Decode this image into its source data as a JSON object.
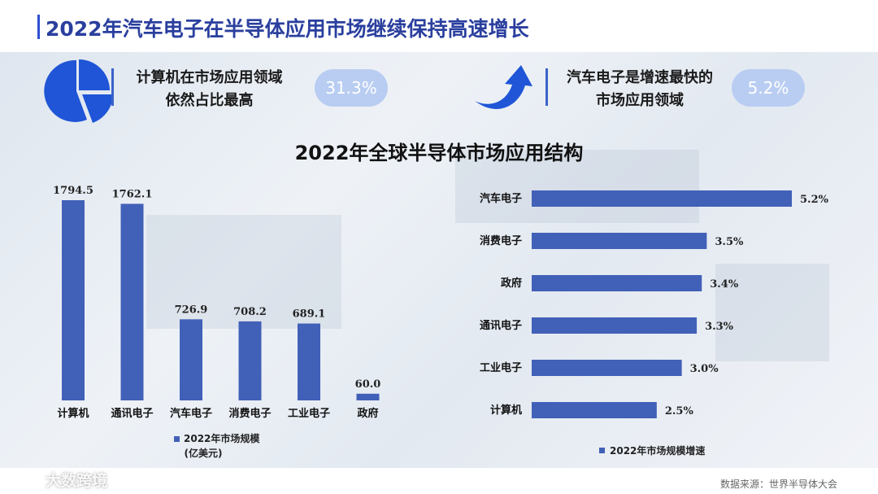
{
  "page": {
    "title": "2022年汽车电子在半导体应用市场继续保持高速增长"
  },
  "kpi": [
    {
      "icon": "pie-chart-icon",
      "line1": "计算机在市场应用领域",
      "line2": "依然占比最高",
      "value": "31.3%"
    },
    {
      "icon": "curved-arrow-up-icon",
      "line1": "汽车电子是增速最快的",
      "line2": "市场应用领域",
      "value": "5.2%"
    }
  ],
  "chart_title": "2022年全球半导体市场应用结构",
  "chart_data": [
    {
      "type": "bar",
      "categories": [
        "计算机",
        "通讯电子",
        "汽车电子",
        "消费电子",
        "工业电子",
        "政府"
      ],
      "values": [
        1794.5,
        1762.1,
        726.9,
        708.2,
        689.1,
        60.0
      ],
      "value_labels": [
        "1794.5",
        "1762.1",
        "726.9",
        "708.2",
        "689.1",
        "60.0"
      ],
      "legend": {
        "line1": "2022年市场规模",
        "line2": "(亿美元)"
      },
      "color": "#4160b8"
    },
    {
      "type": "bar",
      "orientation": "horizontal",
      "categories": [
        "汽车电子",
        "消费电子",
        "政府",
        "通讯电子",
        "工业电子",
        "计算机"
      ],
      "values": [
        5.2,
        3.5,
        3.4,
        3.3,
        3.0,
        2.5
      ],
      "value_labels": [
        "5.2%",
        "3.5%",
        "3.4%",
        "3.3%",
        "3.0%",
        "2.5%"
      ],
      "legend": {
        "line1": "2022年市场规模增速"
      },
      "color": "#4160b8"
    }
  ],
  "footer": {
    "source": "数据来源：世界半导体大会",
    "logo": "大数跨境"
  }
}
